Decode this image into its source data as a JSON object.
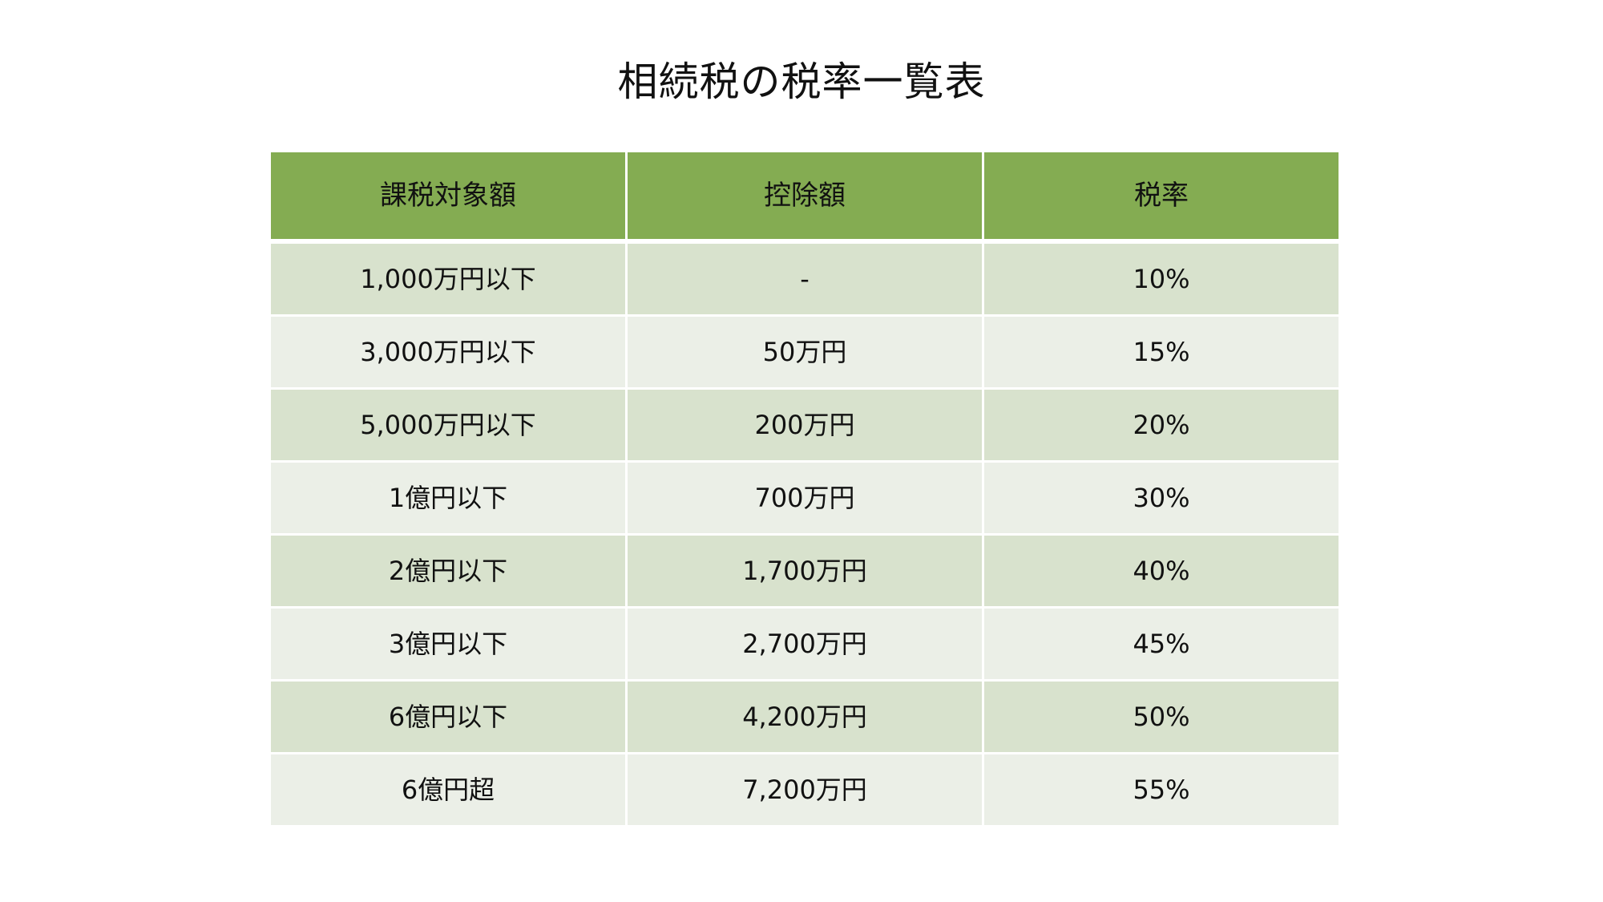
{
  "title": "相続税の税率一覧表",
  "colors": {
    "header_bg": "#84ac52",
    "row_dark": "#d8e2cd",
    "row_light": "#ebefe7"
  },
  "table": {
    "headers": [
      "課税対象額",
      "控除額",
      "税率"
    ],
    "rows": [
      [
        "1,000万円以下",
        "-",
        "10%"
      ],
      [
        "3,000万円以下",
        "50万円",
        "15%"
      ],
      [
        "5,000万円以下",
        "200万円",
        "20%"
      ],
      [
        "1億円以下",
        "700万円",
        "30%"
      ],
      [
        "2億円以下",
        "1,700万円",
        "40%"
      ],
      [
        "3億円以下",
        "2,700万円",
        "45%"
      ],
      [
        "6億円以下",
        "4,200万円",
        "50%"
      ],
      [
        "6億円超",
        "7,200万円",
        "55%"
      ]
    ]
  }
}
